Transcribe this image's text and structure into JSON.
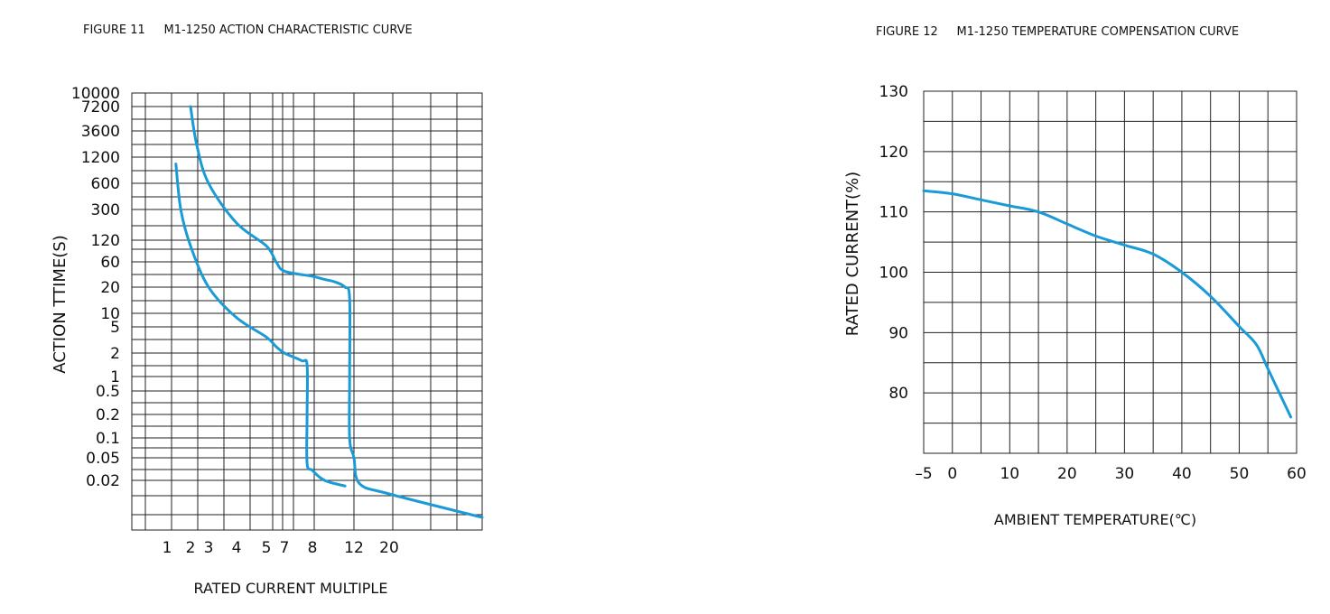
{
  "chart_data": [
    {
      "type": "line",
      "title": "FIGURE 11     M1-1250 ACTION CHARACTERISTIC CURVE",
      "xlabel": "RATED CURRENT MULTIPLE",
      "ylabel": "ACTION TTIME(S)",
      "x_ticks": [
        "1",
        "2",
        "3",
        "4",
        "5",
        "7",
        "8",
        "12",
        "20"
      ],
      "y_ticks": [
        "10000",
        "7200",
        "3600",
        "1200",
        "600",
        "300",
        "120",
        "60",
        "20",
        "10",
        "5",
        "2",
        "1",
        "0.5",
        "0.2",
        "0.1",
        "0.05",
        "0.02"
      ],
      "grid": true,
      "line_color": "#1a9ad6",
      "series": [
        {
          "x": [
            1.3,
            1.5,
            2.0,
            3.0,
            4.0,
            5.0,
            6.0,
            7.0,
            7.6,
            7.8,
            7.8,
            7.8,
            8.0,
            9.0,
            11.0
          ],
          "y": [
            1000,
            300,
            100,
            20,
            8,
            3.5,
            2.5,
            2.0,
            1.6,
            1.4,
            0.2,
            0.04,
            0.03,
            0.02,
            0.015
          ]
        },
        {
          "x": [
            2.0,
            2.3,
            3.0,
            4.0,
            5.0,
            6.0,
            7.0,
            8.0,
            9.0,
            10.0,
            11.0,
            11.5,
            11.5,
            11.5,
            12.0,
            13.0,
            20.0,
            40.0
          ],
          "y": [
            7200,
            2000,
            600,
            200,
            100,
            60,
            40,
            32,
            28,
            25,
            20,
            15,
            1,
            0.1,
            0.05,
            0.017,
            0.01,
            0.003
          ]
        }
      ]
    },
    {
      "type": "line",
      "title": "FIGURE 12     M1-1250 TEMPERATURE COMPENSATION CURVE",
      "xlabel": "AMBIENT TEMPERATURE(℃)",
      "ylabel": "RATED CURRENT(%)",
      "x_ticks": [
        "–5",
        "0",
        "10",
        "20",
        "30",
        "40",
        "50",
        "60"
      ],
      "y_ticks": [
        "130",
        "120",
        "110",
        "100",
        "90",
        "80"
      ],
      "xlim": [
        -5,
        60
      ],
      "ylim": [
        70,
        130
      ],
      "grid": true,
      "line_color": "#1a9ad6",
      "series": [
        {
          "x": [
            -5,
            0,
            5,
            10,
            15,
            20,
            25,
            30,
            35,
            40,
            45,
            50,
            53,
            55,
            57,
            59
          ],
          "y": [
            113.5,
            113,
            112,
            111,
            110,
            108,
            106,
            104.5,
            103,
            100,
            96,
            91,
            88,
            84,
            80,
            76
          ]
        }
      ]
    }
  ]
}
